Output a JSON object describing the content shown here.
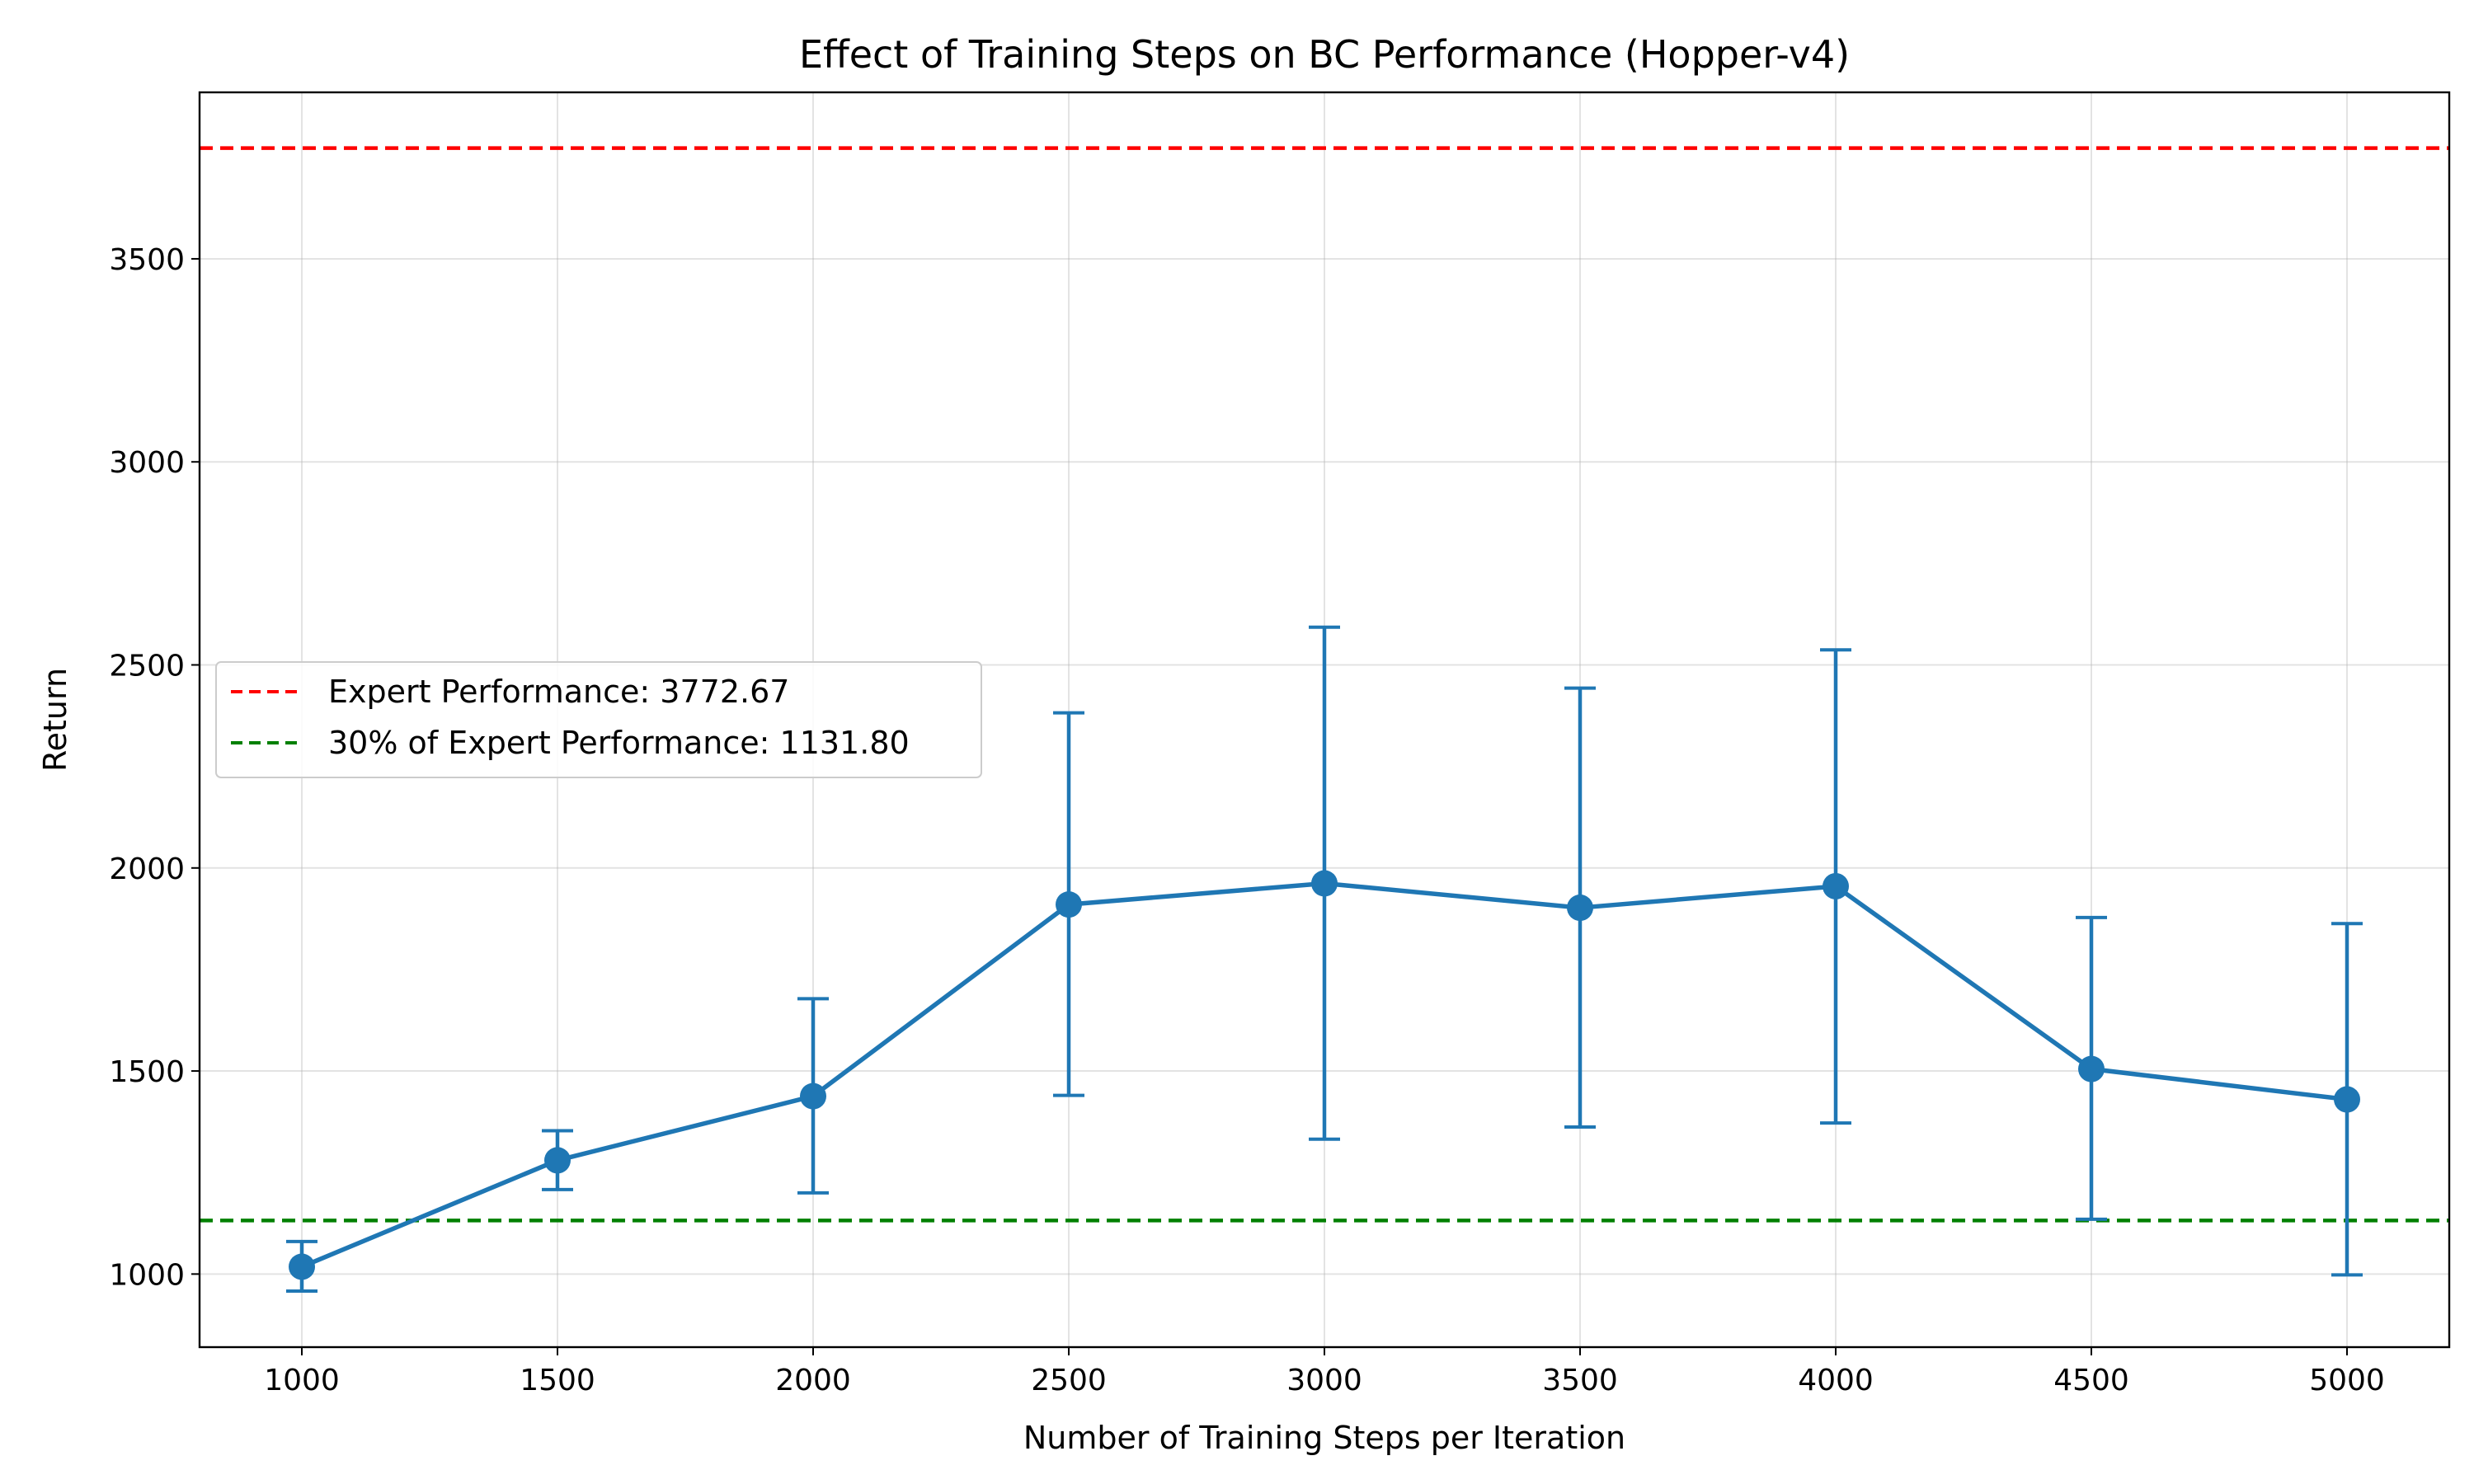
{
  "chart_data": {
    "type": "line",
    "title": "Effect of Training Steps on BC Performance (Hopper-v4)",
    "xlabel": "Number of Training Steps per Iteration",
    "ylabel": "Return",
    "xlim": [
      800,
      5200
    ],
    "ylim": [
      820,
      3910
    ],
    "x_ticks": [
      1000,
      1500,
      2000,
      2500,
      3000,
      3500,
      4000,
      4500,
      5000
    ],
    "y_ticks": [
      1000,
      1500,
      2000,
      2500,
      3000,
      3500
    ],
    "grid": true,
    "legend_placement": "center-left",
    "series": [
      {
        "color": "#1f77b4",
        "x": [
          1000,
          1500,
          2000,
          2500,
          3000,
          3500,
          4000,
          4500,
          5000
        ],
        "y": [
          1018,
          1280,
          1438,
          1910,
          1962,
          1902,
          1955,
          1505,
          1430
        ],
        "err_low": [
          958,
          1208,
          1200,
          1440,
          1332,
          1362,
          1372,
          1135,
          998
        ],
        "err_high": [
          1080,
          1353,
          1678,
          2382,
          2593,
          2443,
          2537,
          1878,
          1863
        ]
      }
    ],
    "reference_lines": [
      {
        "label": "Expert Performance: 3772.67",
        "y": 3772.67,
        "color": "#ff0000"
      },
      {
        "label": "30% of Expert Performance: 1131.80",
        "y": 1131.8,
        "color": "#008000"
      }
    ]
  }
}
